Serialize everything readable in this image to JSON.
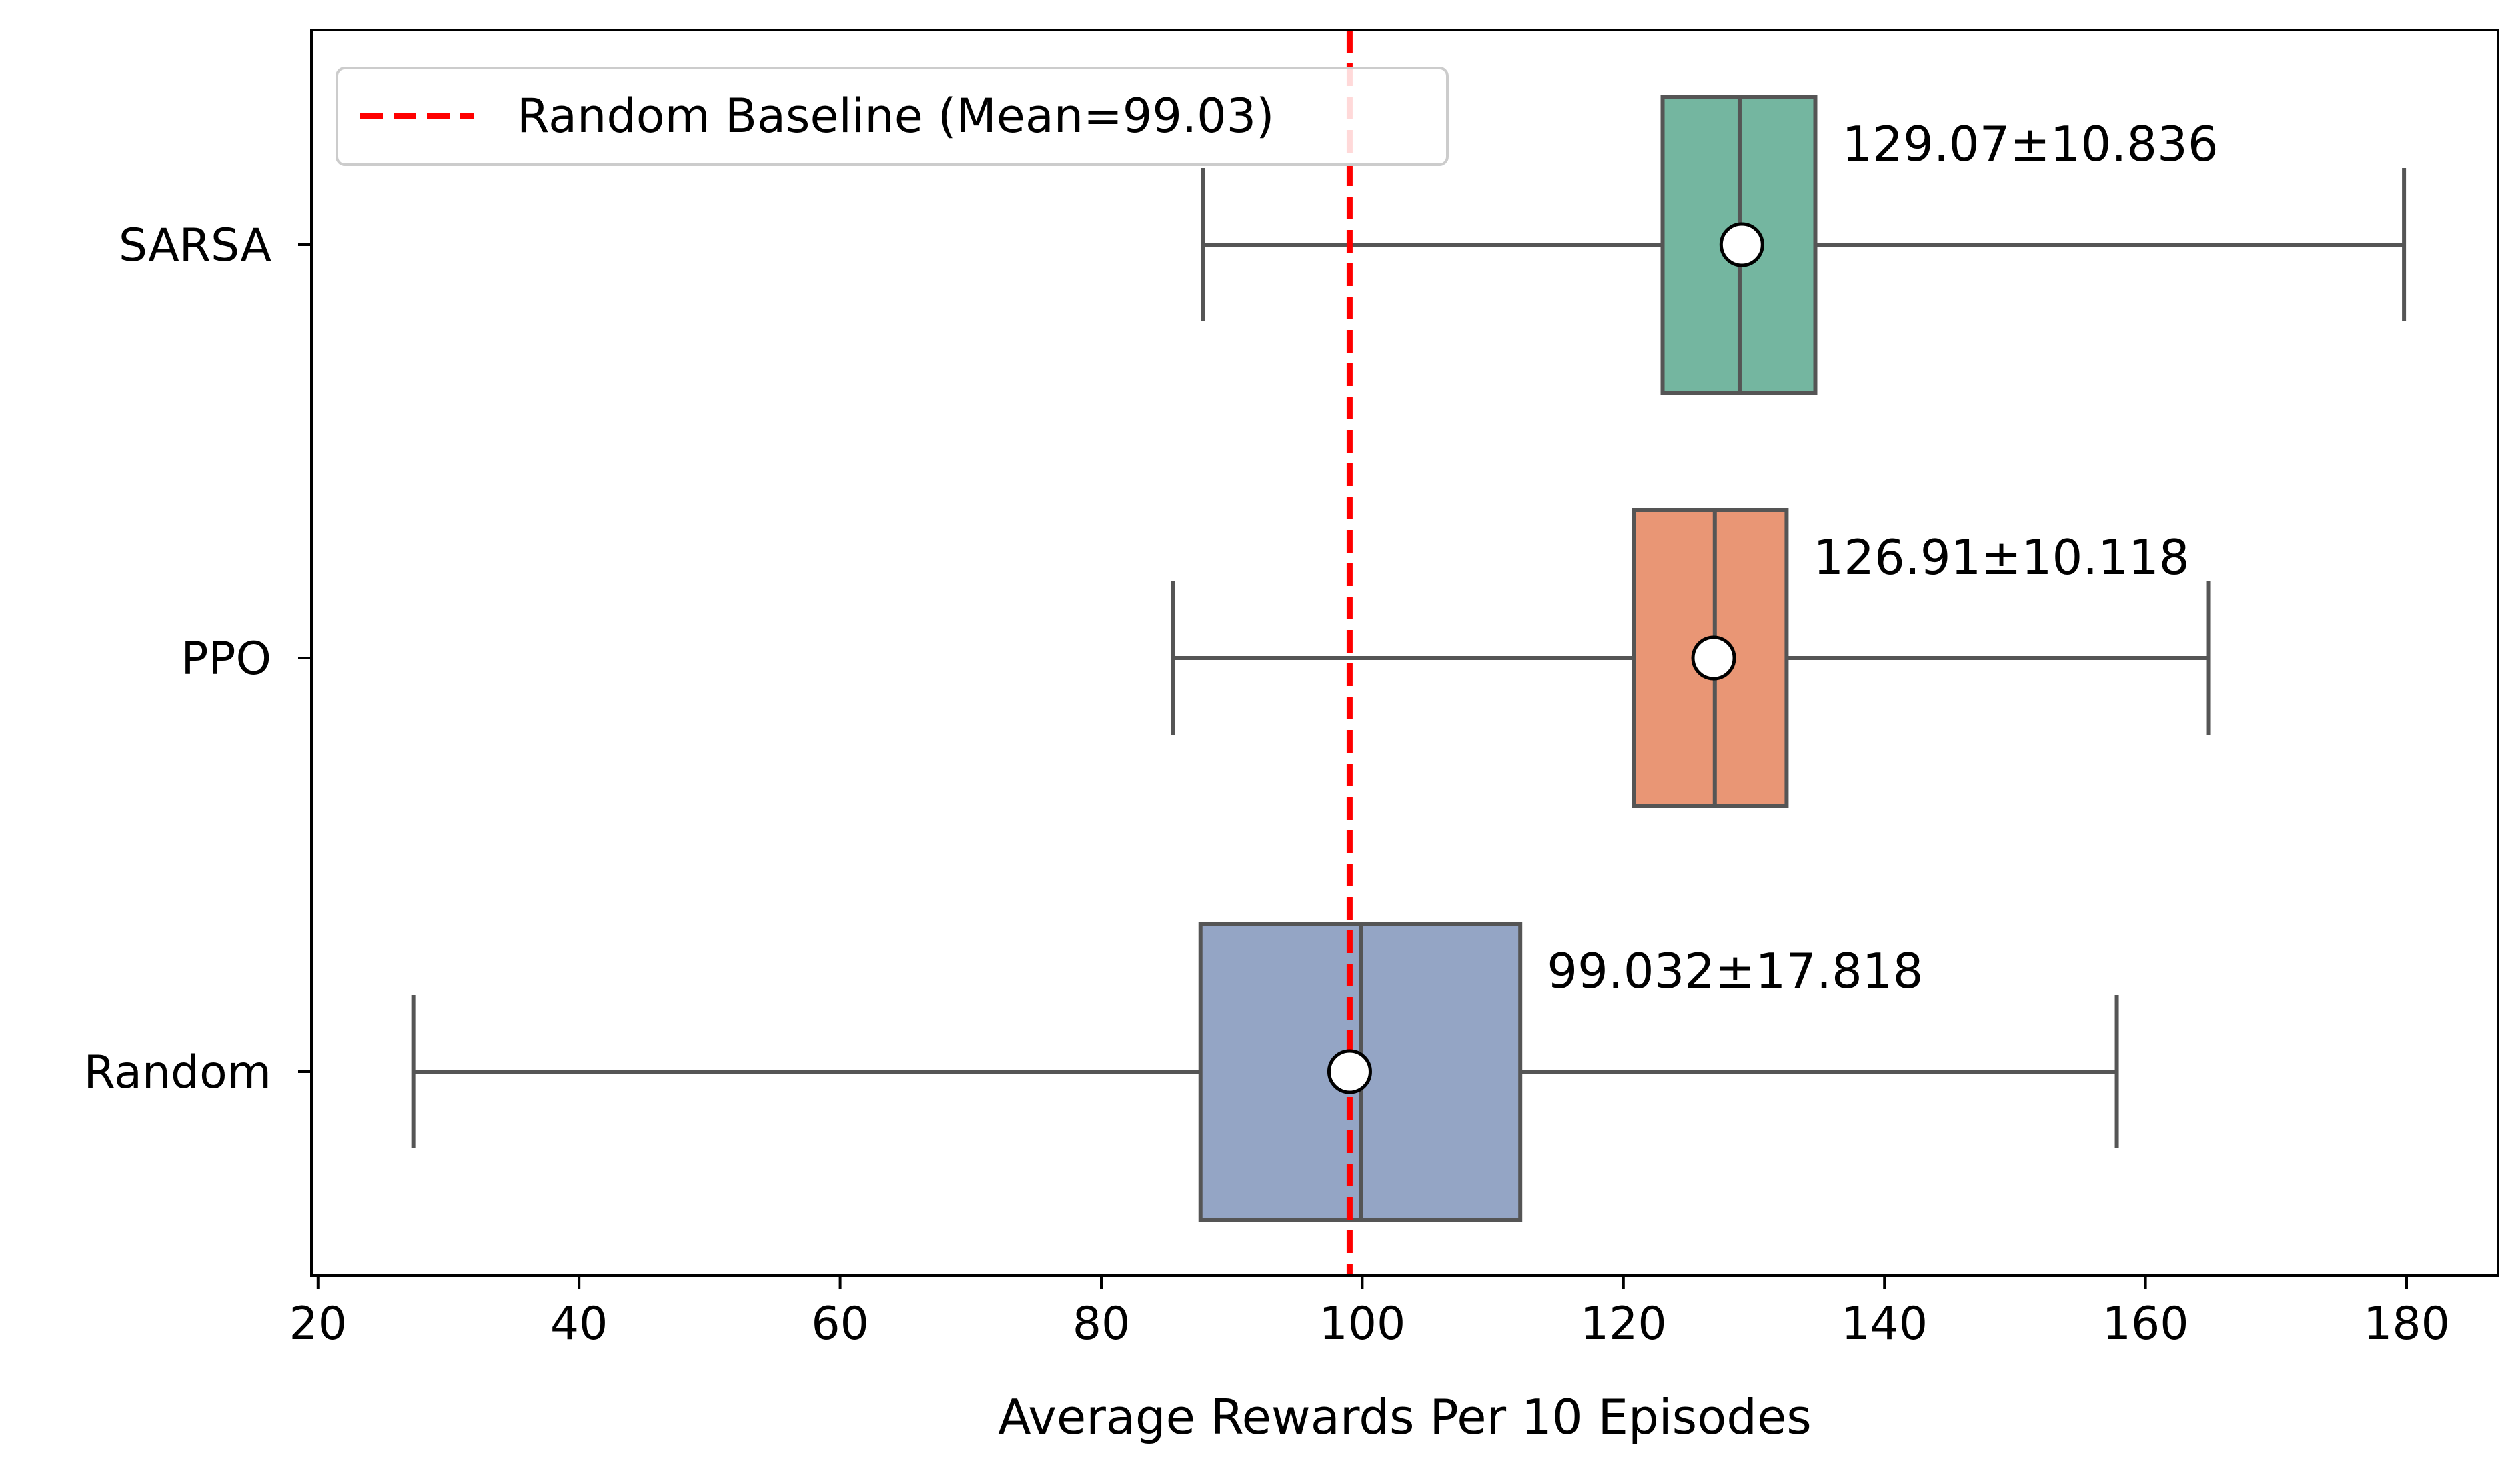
{
  "chart_data": {
    "type": "box",
    "orientation": "horizontal",
    "xlabel": "Average Rewards Per 10 Episodes",
    "ylabel": "",
    "xlim": [
      19.5,
      187.0
    ],
    "xticks": [
      20,
      40,
      60,
      80,
      100,
      120,
      140,
      160,
      180
    ],
    "grid": false,
    "categories": [
      "SARSA",
      "PPO",
      "Random"
    ],
    "boxes": [
      {
        "name": "SARSA",
        "whisker_low": 87.8,
        "q1": 123.0,
        "median": 128.9,
        "q3": 134.7,
        "whisker_high": 179.8,
        "mean": 129.07,
        "color": "#74b6a0",
        "annotation": "129.07±10.836"
      },
      {
        "name": "PPO",
        "whisker_low": 85.5,
        "q1": 120.8,
        "median": 127.0,
        "q3": 132.5,
        "whisker_high": 164.8,
        "mean": 126.91,
        "color": "#e99675",
        "annotation": "126.91±10.118"
      },
      {
        "name": "Random",
        "whisker_low": 27.3,
        "q1": 87.6,
        "median": 99.9,
        "q3": 112.1,
        "whisker_high": 157.8,
        "mean": 99.032,
        "color": "#94a5c5",
        "annotation": "99.032±17.818"
      }
    ],
    "reference_line": {
      "value": 99.03,
      "label": "Random Baseline (Mean=99.03)",
      "color": "#ff0000",
      "style": "dashed"
    },
    "legend": {
      "position": "top-left",
      "entries": [
        "Random Baseline (Mean=99.03)"
      ]
    },
    "edge_color": "#555555",
    "mean_marker": {
      "fill": "#ffffff",
      "stroke": "#000000"
    }
  }
}
